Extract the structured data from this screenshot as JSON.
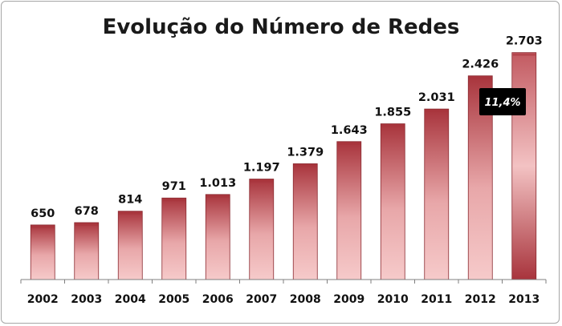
{
  "chart_data": {
    "type": "bar",
    "title": "Evolução do Número de Redes",
    "categories": [
      "2002",
      "2003",
      "2004",
      "2005",
      "2006",
      "2007",
      "2008",
      "2009",
      "2010",
      "2011",
      "2012",
      "2013"
    ],
    "values": [
      650,
      678,
      814,
      971,
      1013,
      1197,
      1379,
      1643,
      1855,
      2031,
      2426,
      2703
    ],
    "value_labels": [
      "650",
      "678",
      "814",
      "971",
      "1.013",
      "1.197",
      "1.379",
      "1.643",
      "1.855",
      "2.031",
      "2.426",
      "2.703"
    ],
    "ylim": [
      0,
      2900
    ],
    "grid": false,
    "legend": "none",
    "annotation": {
      "text": "11,4%"
    },
    "colors": {
      "bar_dark": "#a8343c",
      "bar_light": "#f6caca",
      "axis": "#7f7f7f",
      "annotation_bg": "#000000",
      "annotation_text": "#ffffff"
    }
  }
}
